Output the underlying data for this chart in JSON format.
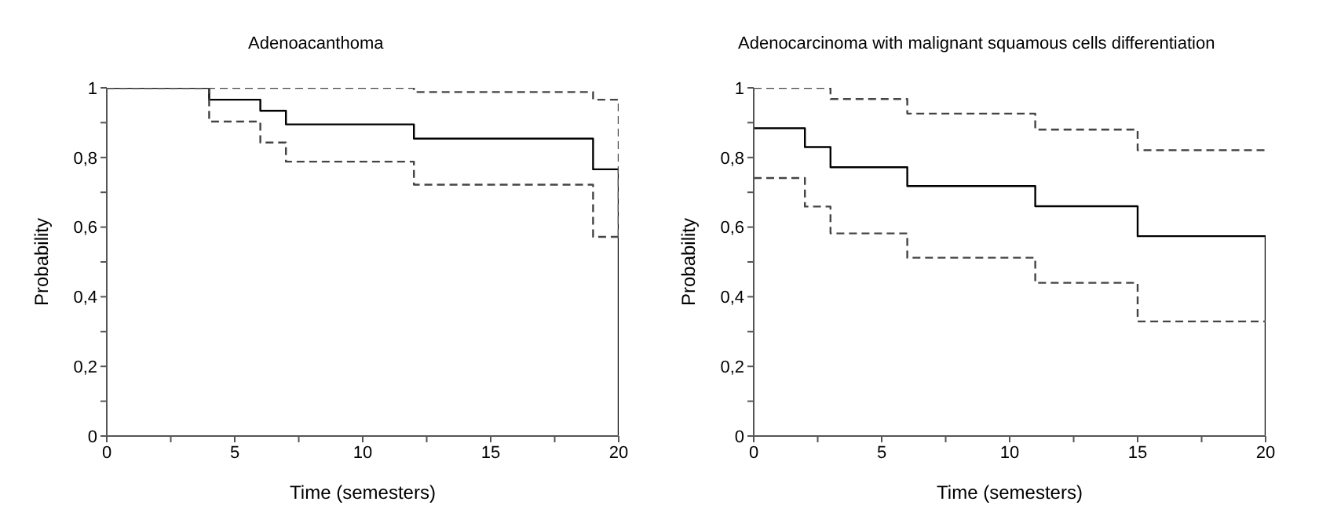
{
  "chart_data": [
    {
      "type": "step",
      "title": "Adenoacanthoma",
      "xlabel": "Time (semesters)",
      "ylabel": "Probability",
      "xlim": [
        0,
        20
      ],
      "ylim": [
        0,
        1
      ],
      "xticks": [
        {
          "value": 0,
          "label": "0"
        },
        {
          "value": 2.5,
          "label": null
        },
        5,
        {
          "value": 7.5,
          "label": null
        },
        10,
        {
          "value": 12.5,
          "label": null
        },
        15,
        {
          "value": 17.5,
          "label": null
        },
        20
      ],
      "yticks": [
        {
          "value": 0,
          "label": "0"
        },
        {
          "value": 0.1,
          "label": null
        },
        {
          "value": 0.2,
          "label": "0,2"
        },
        {
          "value": 0.3,
          "label": null
        },
        {
          "value": 0.4,
          "label": "0,4"
        },
        {
          "value": 0.5,
          "label": null
        },
        {
          "value": 0.6,
          "label": "0,6"
        },
        {
          "value": 0.7,
          "label": null
        },
        {
          "value": 0.8,
          "label": "0,8"
        },
        {
          "value": 0.9,
          "label": null
        },
        1
      ],
      "grid": false,
      "legend": false,
      "series": [
        {
          "color": "#000000",
          "line_style": "solid",
          "x": [
            0,
            4,
            6,
            7,
            12,
            19,
            20
          ],
          "values": [
            1,
            0.966,
            0.934,
            0.895,
            0.854,
            0.766,
            0
          ]
        },
        {
          "color": "#444444",
          "line_style": "dashed",
          "x": [
            0,
            12,
            19,
            20
          ],
          "values": [
            1,
            0.988,
            0.966,
            0.572
          ]
        },
        {
          "color": "#444444",
          "line_style": "dashed",
          "x": [
            0,
            4,
            6,
            7,
            12,
            19,
            20
          ],
          "values": [
            1,
            0.903,
            0.843,
            0.788,
            0.722,
            0.572,
            0.572
          ]
        }
      ]
    },
    {
      "type": "step",
      "title": "Adenocarcinoma with malignant squamous cells differentiation",
      "xlabel": "Time (semesters)",
      "ylabel": "Probability",
      "xlim": [
        0,
        20
      ],
      "ylim": [
        0,
        1
      ],
      "xticks": [
        {
          "value": 0,
          "label": "0"
        },
        {
          "value": 2.5,
          "label": null
        },
        5,
        {
          "value": 7.5,
          "label": null
        },
        10,
        {
          "value": 12.5,
          "label": null
        },
        15,
        {
          "value": 17.5,
          "label": null
        },
        20
      ],
      "yticks": [
        {
          "value": 0,
          "label": "0"
        },
        {
          "value": 0.1,
          "label": null
        },
        {
          "value": 0.2,
          "label": "0,2"
        },
        {
          "value": 0.3,
          "label": null
        },
        {
          "value": 0.4,
          "label": "0,4"
        },
        {
          "value": 0.5,
          "label": null
        },
        {
          "value": 0.6,
          "label": "0,6"
        },
        {
          "value": 0.7,
          "label": null
        },
        {
          "value": 0.8,
          "label": "0,8"
        },
        {
          "value": 0.9,
          "label": null
        },
        1
      ],
      "grid": false,
      "legend": false,
      "series": [
        {
          "color": "#000000",
          "line_style": "solid",
          "x": [
            0,
            2,
            3,
            6,
            11,
            15,
            20
          ],
          "values": [
            0.884,
            0.83,
            0.772,
            0.718,
            0.66,
            0.574,
            0
          ]
        },
        {
          "color": "#444444",
          "line_style": "dashed",
          "x": [
            0,
            3,
            6,
            11,
            15,
            20
          ],
          "values": [
            1,
            0.968,
            0.926,
            0.88,
            0.821,
            0.821
          ]
        },
        {
          "color": "#444444",
          "line_style": "dashed",
          "x": [
            0,
            2,
            3,
            6,
            11,
            15,
            20
          ],
          "values": [
            0.741,
            0.659,
            0.582,
            0.512,
            0.44,
            0.329,
            0.329
          ]
        }
      ]
    }
  ]
}
